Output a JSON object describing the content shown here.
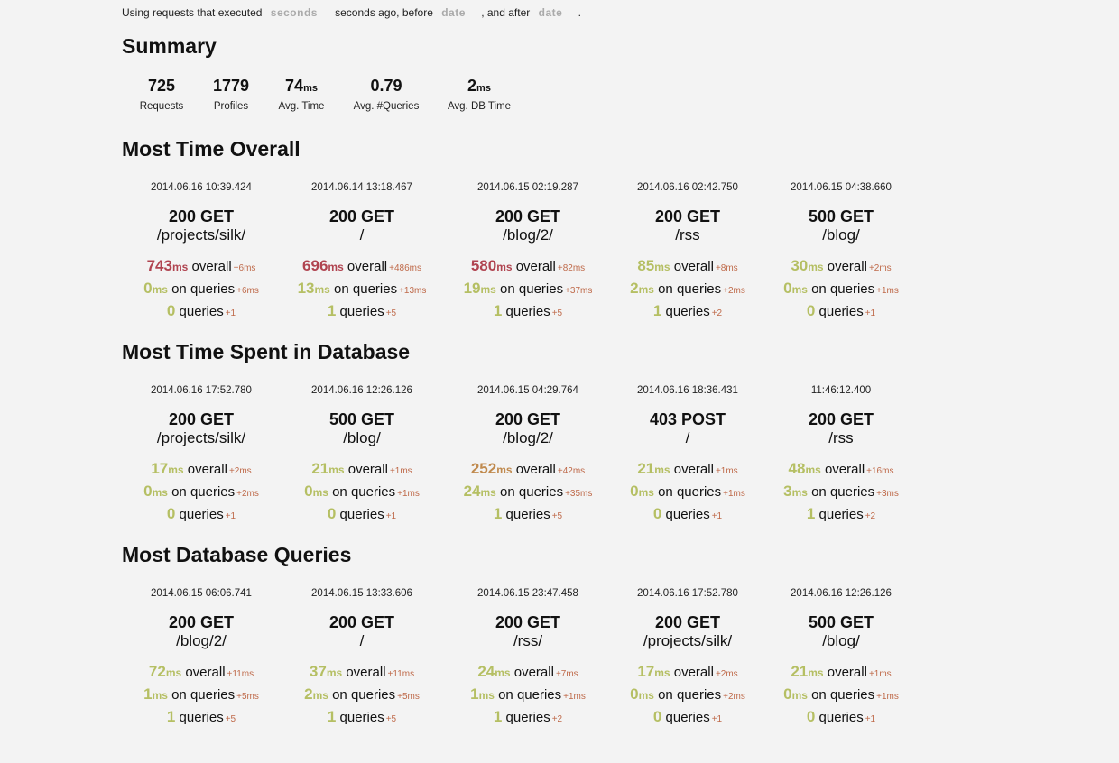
{
  "filter": {
    "prefix": "Using requests that executed",
    "seconds_placeholder": "seconds",
    "middle": "seconds ago, before",
    "before_placeholder": "date",
    "after_text": ", and after",
    "after_placeholder": "date",
    "suffix": "."
  },
  "summary": {
    "title": "Summary",
    "stats": [
      {
        "value": "725",
        "unit": "",
        "label": "Requests"
      },
      {
        "value": "1779",
        "unit": "",
        "label": "Profiles"
      },
      {
        "value": "74",
        "unit": "ms",
        "label": "Avg. Time"
      },
      {
        "value": "0.79",
        "unit": "",
        "label": "Avg. #Queries"
      },
      {
        "value": "2",
        "unit": "ms",
        "label": "Avg. DB Time"
      }
    ]
  },
  "labels": {
    "overall": "overall",
    "on_queries": "on queries",
    "queries": "queries",
    "ms": "ms"
  },
  "colors": {
    "good": "#b5bf63",
    "bad": "#b04450",
    "warn": "#c08a4e",
    "delta": "#bf6a4a"
  },
  "sections": [
    {
      "title": "Most Time Overall",
      "requests": [
        {
          "timestamp": "2014.06.16 10:39.424",
          "status": "200 GET",
          "path": "/projects/silk/",
          "overall": "743",
          "overall_color": "bad",
          "overall_delta": "+6ms",
          "db_time": "0",
          "db_delta": "+6ms",
          "queries": "0",
          "queries_delta": "+1"
        },
        {
          "timestamp": "2014.06.14 13:18.467",
          "status": "200 GET",
          "path": "/",
          "overall": "696",
          "overall_color": "bad",
          "overall_delta": "+486ms",
          "db_time": "13",
          "db_delta": "+13ms",
          "queries": "1",
          "queries_delta": "+5"
        },
        {
          "timestamp": "2014.06.15 02:19.287",
          "status": "200 GET",
          "path": "/blog/2/",
          "overall": "580",
          "overall_color": "bad",
          "overall_delta": "+82ms",
          "db_time": "19",
          "db_delta": "+37ms",
          "queries": "1",
          "queries_delta": "+5"
        },
        {
          "timestamp": "2014.06.16 02:42.750",
          "status": "200 GET",
          "path": "/rss",
          "overall": "85",
          "overall_color": "good",
          "overall_delta": "+8ms",
          "db_time": "2",
          "db_delta": "+2ms",
          "queries": "1",
          "queries_delta": "+2"
        },
        {
          "timestamp": "2014.06.15 04:38.660",
          "status": "500 GET",
          "path": "/blog/",
          "overall": "30",
          "overall_color": "good",
          "overall_delta": "+2ms",
          "db_time": "0",
          "db_delta": "+1ms",
          "queries": "0",
          "queries_delta": "+1"
        }
      ]
    },
    {
      "title": "Most Time Spent in Database",
      "requests": [
        {
          "timestamp": "2014.06.16 17:52.780",
          "status": "200 GET",
          "path": "/projects/silk/",
          "overall": "17",
          "overall_color": "good",
          "overall_delta": "+2ms",
          "db_time": "0",
          "db_delta": "+2ms",
          "queries": "0",
          "queries_delta": "+1"
        },
        {
          "timestamp": "2014.06.16 12:26.126",
          "status": "500 GET",
          "path": "/blog/",
          "overall": "21",
          "overall_color": "good",
          "overall_delta": "+1ms",
          "db_time": "0",
          "db_delta": "+1ms",
          "queries": "0",
          "queries_delta": "+1"
        },
        {
          "timestamp": "2014.06.15 04:29.764",
          "status": "200 GET",
          "path": "/blog/2/",
          "overall": "252",
          "overall_color": "warn",
          "overall_delta": "+42ms",
          "db_time": "24",
          "db_delta": "+35ms",
          "queries": "1",
          "queries_delta": "+5"
        },
        {
          "timestamp": "2014.06.16 18:36.431",
          "status": "403 POST",
          "path": "/",
          "overall": "21",
          "overall_color": "good",
          "overall_delta": "+1ms",
          "db_time": "0",
          "db_delta": "+1ms",
          "queries": "0",
          "queries_delta": "+1"
        },
        {
          "timestamp": "11:46:12.400",
          "status": "200 GET",
          "path": "/rss",
          "overall": "48",
          "overall_color": "good",
          "overall_delta": "+16ms",
          "db_time": "3",
          "db_delta": "+3ms",
          "queries": "1",
          "queries_delta": "+2"
        }
      ]
    },
    {
      "title": "Most Database Queries",
      "requests": [
        {
          "timestamp": "2014.06.15 06:06.741",
          "status": "200 GET",
          "path": "/blog/2/",
          "overall": "72",
          "overall_color": "good",
          "overall_delta": "+11ms",
          "db_time": "1",
          "db_delta": "+5ms",
          "queries": "1",
          "queries_delta": "+5"
        },
        {
          "timestamp": "2014.06.15 13:33.606",
          "status": "200 GET",
          "path": "/",
          "overall": "37",
          "overall_color": "good",
          "overall_delta": "+11ms",
          "db_time": "2",
          "db_delta": "+5ms",
          "queries": "1",
          "queries_delta": "+5"
        },
        {
          "timestamp": "2014.06.15 23:47.458",
          "status": "200 GET",
          "path": "/rss/",
          "overall": "24",
          "overall_color": "good",
          "overall_delta": "+7ms",
          "db_time": "1",
          "db_delta": "+1ms",
          "queries": "1",
          "queries_delta": "+2"
        },
        {
          "timestamp": "2014.06.16 17:52.780",
          "status": "200 GET",
          "path": "/projects/silk/",
          "overall": "17",
          "overall_color": "good",
          "overall_delta": "+2ms",
          "db_time": "0",
          "db_delta": "+2ms",
          "queries": "0",
          "queries_delta": "+1"
        },
        {
          "timestamp": "2014.06.16 12:26.126",
          "status": "500 GET",
          "path": "/blog/",
          "overall": "21",
          "overall_color": "good",
          "overall_delta": "+1ms",
          "db_time": "0",
          "db_delta": "+1ms",
          "queries": "0",
          "queries_delta": "+1"
        }
      ]
    }
  ]
}
